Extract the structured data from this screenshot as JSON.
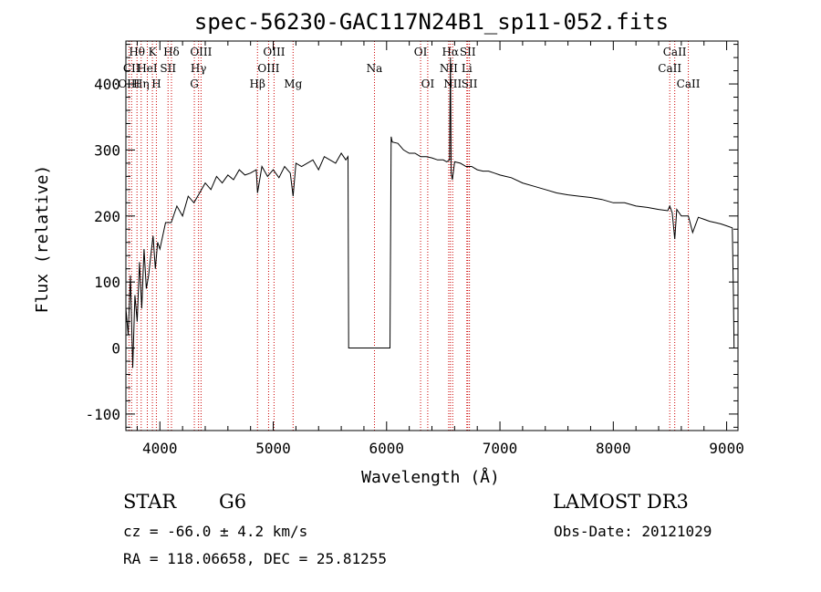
{
  "chart_data": {
    "type": "line",
    "title": "spec-56230-GAC117N24B1_sp11-052.fits",
    "xlabel": "Wavelength (Å)",
    "ylabel": "Flux (relative)",
    "xlim": [
      3700,
      9100
    ],
    "ylim": [
      -125,
      465
    ],
    "x_ticks": [
      4000,
      5000,
      6000,
      7000,
      8000,
      9000
    ],
    "y_ticks": [
      -100,
      0,
      100,
      200,
      300,
      400
    ],
    "series": [
      {
        "name": "flux",
        "x": [
          3700,
          3720,
          3740,
          3760,
          3780,
          3800,
          3820,
          3840,
          3860,
          3880,
          3900,
          3920,
          3940,
          3960,
          3980,
          4000,
          4050,
          4100,
          4150,
          4200,
          4250,
          4300,
          4350,
          4400,
          4450,
          4500,
          4550,
          4600,
          4650,
          4700,
          4750,
          4800,
          4850,
          4861,
          4900,
          4950,
          5000,
          5050,
          5100,
          5150,
          5175,
          5200,
          5250,
          5300,
          5350,
          5400,
          5450,
          5500,
          5550,
          5600,
          5640,
          5660,
          5665,
          6030,
          6040,
          6050,
          6100,
          6150,
          6200,
          6250,
          6300,
          6350,
          6400,
          6450,
          6500,
          6530,
          6555,
          6563,
          6570,
          6580,
          6600,
          6650,
          6700,
          6750,
          6800,
          6850,
          6900,
          6950,
          7000,
          7050,
          7100,
          7200,
          7300,
          7400,
          7500,
          7600,
          7700,
          7800,
          7900,
          8000,
          8100,
          8200,
          8300,
          8400,
          8480,
          8498,
          8520,
          8542,
          8560,
          8600,
          8662,
          8700,
          8750,
          8800,
          8850,
          8900,
          8950,
          9000,
          9050,
          9060,
          9065
        ],
        "y": [
          60,
          20,
          110,
          -30,
          80,
          40,
          130,
          60,
          150,
          90,
          110,
          140,
          170,
          120,
          160,
          150,
          190,
          190,
          215,
          200,
          230,
          220,
          235,
          250,
          240,
          260,
          250,
          262,
          255,
          270,
          262,
          265,
          270,
          235,
          275,
          260,
          270,
          258,
          275,
          265,
          230,
          280,
          275,
          280,
          285,
          270,
          290,
          285,
          280,
          295,
          285,
          290,
          0,
          0,
          320,
          312,
          310,
          300,
          295,
          295,
          290,
          290,
          288,
          285,
          285,
          282,
          285,
          440,
          265,
          255,
          282,
          280,
          275,
          275,
          270,
          268,
          268,
          265,
          262,
          260,
          258,
          250,
          245,
          240,
          235,
          232,
          230,
          228,
          225,
          220,
          220,
          215,
          213,
          210,
          208,
          215,
          205,
          165,
          210,
          200,
          200,
          175,
          198,
          195,
          192,
          190,
          188,
          185,
          182,
          80,
          0
        ]
      }
    ],
    "annotations": [
      {
        "label": "Hθ",
        "x": 3798,
        "row": 0
      },
      {
        "label": "K",
        "x": 3934,
        "row": 0
      },
      {
        "label": "Hδ",
        "x": 4102,
        "row": 0
      },
      {
        "label": "OIII",
        "x": 4363,
        "row": 0
      },
      {
        "label": "OIII",
        "x": 5007,
        "row": 0
      },
      {
        "label": "OI",
        "x": 6300,
        "row": 0
      },
      {
        "label": "Hα",
        "x": 6563,
        "row": 0
      },
      {
        "label": "SII",
        "x": 6716,
        "row": 0
      },
      {
        "label": "CaII",
        "x": 8542,
        "row": 0
      },
      {
        "label": "CII",
        "x": 3750,
        "row": 1
      },
      {
        "label": "HeI",
        "x": 3889,
        "row": 1
      },
      {
        "label": "SII",
        "x": 4072,
        "row": 1
      },
      {
        "label": "Hγ",
        "x": 4341,
        "row": 1
      },
      {
        "label": "OIII",
        "x": 4959,
        "row": 1
      },
      {
        "label": "Na",
        "x": 5893,
        "row": 1
      },
      {
        "label": "NII",
        "x": 6548,
        "row": 1
      },
      {
        "label": "Li",
        "x": 6708,
        "row": 1
      },
      {
        "label": "CaII",
        "x": 8498,
        "row": 1
      },
      {
        "label": "OIII",
        "x": 3727,
        "row": 2
      },
      {
        "label": "Hη",
        "x": 3835,
        "row": 2
      },
      {
        "label": "H",
        "x": 3969,
        "row": 2
      },
      {
        "label": "G",
        "x": 4304,
        "row": 2
      },
      {
        "label": "Hβ",
        "x": 4861,
        "row": 2
      },
      {
        "label": "Mg",
        "x": 5175,
        "row": 2
      },
      {
        "label": "OI",
        "x": 6363,
        "row": 2
      },
      {
        "label": "NII",
        "x": 6583,
        "row": 2
      },
      {
        "label": "SII",
        "x": 6731,
        "row": 2
      },
      {
        "label": "CaII",
        "x": 8662,
        "row": 2
      }
    ],
    "line_positions": [
      3727,
      3750,
      3798,
      3835,
      3889,
      3934,
      3969,
      4072,
      4102,
      4304,
      4341,
      4363,
      4861,
      4959,
      5007,
      5175,
      5893,
      6300,
      6363,
      6548,
      6563,
      6583,
      6708,
      6716,
      6731,
      8498,
      8542,
      8662
    ],
    "colors": {
      "line": "#000000",
      "marker": "#cc0000",
      "axes": "#000000"
    }
  },
  "info": {
    "class_label": "STAR",
    "subclass": "G6",
    "survey": "LAMOST DR3",
    "redshift": "cz = -66.0 ± 4.2 km/s",
    "obs_date": "Obs-Date: 20121029",
    "coords": "RA = 118.06658, DEC =  25.81255"
  }
}
